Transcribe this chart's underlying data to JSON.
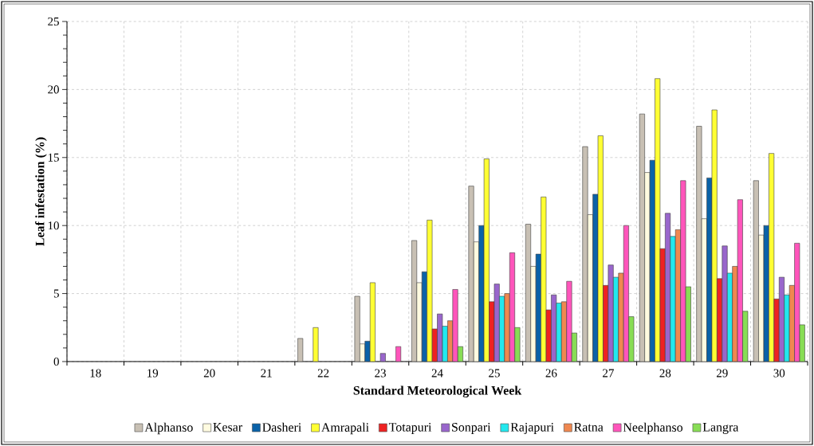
{
  "chart_data": {
    "type": "bar",
    "xlabel": "Standard Meteorological Week",
    "ylabel": "Leaf infestation (%)",
    "categories": [
      "18",
      "19",
      "20",
      "21",
      "22",
      "23",
      "24",
      "25",
      "26",
      "27",
      "28",
      "29",
      "30"
    ],
    "ylim": [
      0,
      25
    ],
    "yticks": [
      0,
      5,
      10,
      15,
      20,
      25
    ],
    "grid": true,
    "legend": "bottom",
    "series": [
      {
        "name": "Alphanso",
        "color": "#c8c0b4",
        "values": [
          null,
          null,
          null,
          null,
          1.7,
          4.8,
          8.9,
          12.9,
          10.1,
          15.8,
          18.2,
          17.3,
          13.3
        ]
      },
      {
        "name": "Kesar",
        "color": "#fffbe0",
        "values": [
          null,
          null,
          null,
          null,
          null,
          1.3,
          5.8,
          8.8,
          7.0,
          10.8,
          13.9,
          10.5,
          9.3
        ]
      },
      {
        "name": "Dasheri",
        "color": "#0a62a8",
        "values": [
          null,
          null,
          null,
          null,
          null,
          1.5,
          6.6,
          10.0,
          7.9,
          12.3,
          14.8,
          13.5,
          10.0
        ]
      },
      {
        "name": "Amrapali",
        "color": "#ffff33",
        "values": [
          null,
          null,
          null,
          null,
          2.5,
          5.8,
          10.4,
          14.9,
          12.1,
          16.6,
          20.8,
          18.5,
          15.3
        ]
      },
      {
        "name": "Totapuri",
        "color": "#ee2222",
        "values": [
          null,
          null,
          null,
          null,
          null,
          null,
          2.4,
          4.4,
          3.8,
          5.6,
          8.3,
          6.1,
          4.6
        ]
      },
      {
        "name": "Sonpari",
        "color": "#9966cc",
        "values": [
          null,
          null,
          null,
          null,
          null,
          0.6,
          3.5,
          5.7,
          4.9,
          7.1,
          10.9,
          8.5,
          6.2
        ]
      },
      {
        "name": "Rajapuri",
        "color": "#22e8ee",
        "values": [
          null,
          null,
          null,
          null,
          null,
          null,
          2.6,
          4.8,
          4.3,
          6.2,
          9.2,
          6.5,
          4.9
        ]
      },
      {
        "name": "Ratna",
        "color": "#f08850",
        "values": [
          null,
          null,
          null,
          null,
          null,
          null,
          3.0,
          5.0,
          4.4,
          6.5,
          9.7,
          7.0,
          5.6
        ]
      },
      {
        "name": "Neelphanso",
        "color": "#ff55bb",
        "values": [
          null,
          null,
          null,
          null,
          null,
          1.1,
          5.3,
          8.0,
          5.9,
          10.0,
          13.3,
          11.9,
          8.7
        ]
      },
      {
        "name": "Langra",
        "color": "#88dd55",
        "values": [
          null,
          null,
          null,
          null,
          null,
          null,
          1.1,
          2.5,
          2.1,
          3.3,
          5.5,
          3.7,
          2.7
        ]
      }
    ]
  }
}
